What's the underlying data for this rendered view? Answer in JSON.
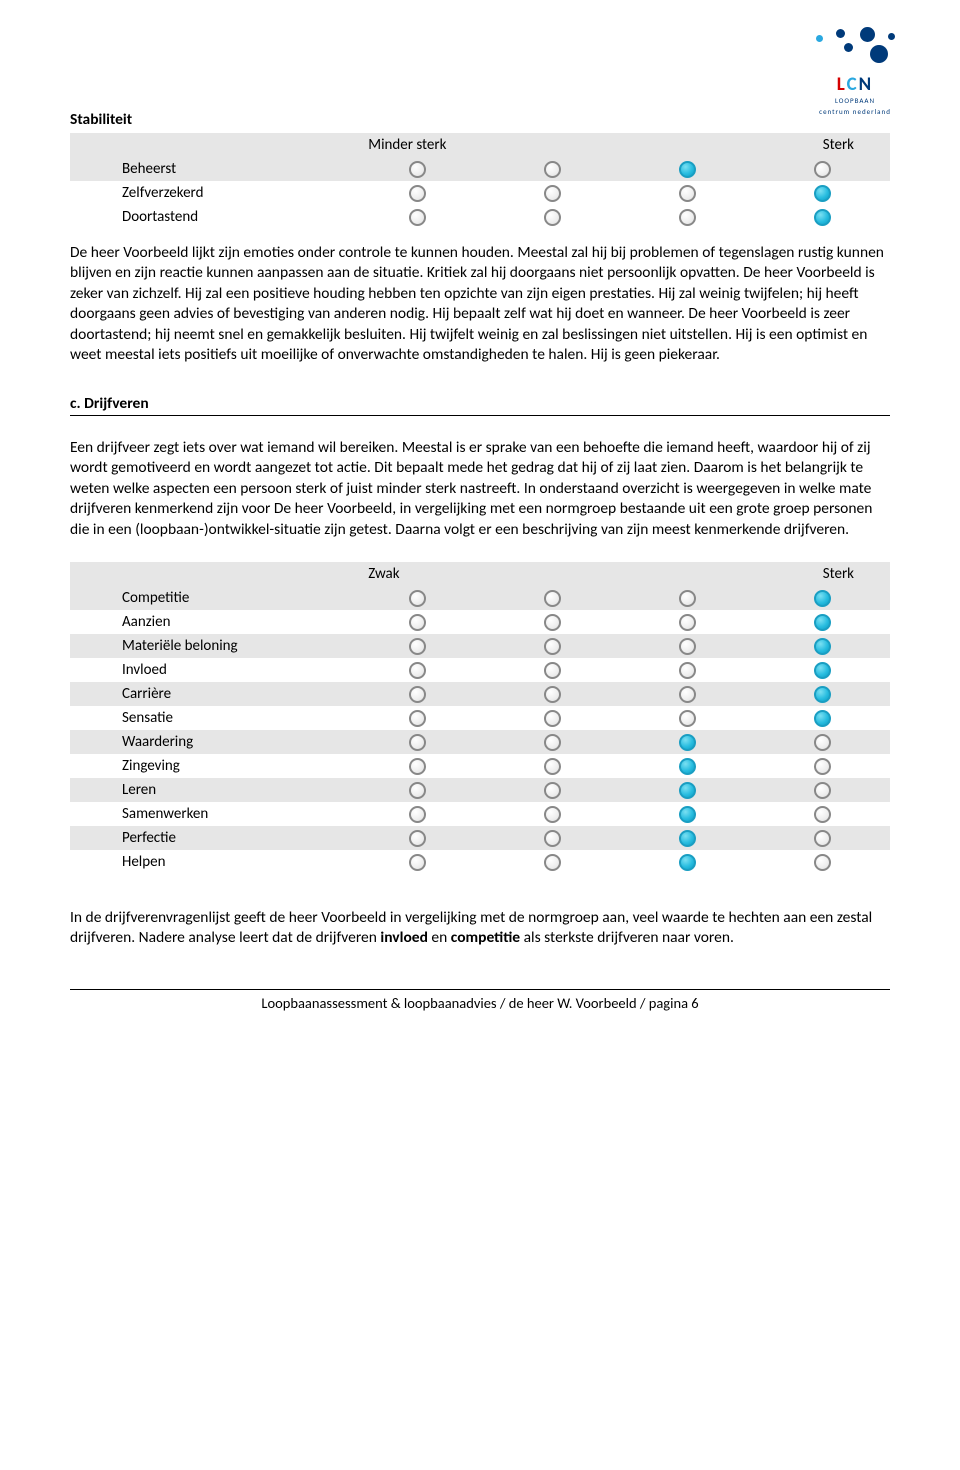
{
  "colors": {
    "row_shade": "#e6e6e6",
    "circle_empty_border": "#888888",
    "circle_fill": "#29bde0",
    "logo_blue": "#003a7a",
    "logo_red": "#d50000",
    "logo_lightblue": "#2aa8e0"
  },
  "logo": {
    "main": "LCN",
    "sub1": "LOOPBAAN",
    "sub2": "centrum nederland"
  },
  "section1": {
    "title": "Stabiliteit",
    "scale_left": "Minder sterk",
    "scale_right": "Sterk",
    "rows": [
      {
        "label": "Beheerst",
        "value": 3,
        "shaded": true
      },
      {
        "label": "Zelfverzekerd",
        "value": 4,
        "shaded": false
      },
      {
        "label": "Doortastend",
        "value": 4,
        "shaded": false
      }
    ]
  },
  "para1": "De heer Voorbeeld lijkt zijn emoties onder controle te kunnen houden. Meestal zal hij bij problemen of tegenslagen rustig kunnen blijven en zijn reactie kunnen aanpassen aan de situatie. Kritiek zal hij doorgaans niet persoonlijk opvatten. De heer Voorbeeld is zeker van zichzelf. Hij zal een positieve houding hebben ten opzichte van zijn eigen prestaties. Hij zal weinig twijfelen; hij heeft doorgaans geen advies of bevestiging van anderen nodig. Hij bepaalt zelf wat hij doet en wanneer. De heer Voorbeeld is zeer doortastend; hij neemt snel en gemakkelijk besluiten. Hij twijfelt weinig en zal beslissingen niet uitstellen. Hij is een optimist en weet meestal iets positiefs uit moeilijke of onverwachte omstandigheden te halen. Hij is geen piekeraar.",
  "section2": {
    "head": "c.  Drijfveren",
    "intro": "Een drijfveer zegt iets over wat iemand wil bereiken. Meestal is er sprake van een behoefte die iemand heeft, waardoor hij of zij wordt gemotiveerd en wordt aangezet tot actie. Dit bepaalt mede het gedrag dat hij of zij laat zien. Daarom is het belangrijk te weten welke aspecten een persoon sterk of juist minder sterk nastreeft. In onderstaand overzicht is weergegeven in welke mate drijfveren kenmerkend zijn voor De heer Voorbeeld, in vergelijking met een normgroep bestaande uit een grote groep personen die in een (loopbaan-)ontwikkel-situatie zijn getest. Daarna volgt er een beschrijving van zijn meest kenmerkende drijfveren.",
    "scale_left": "Zwak",
    "scale_right": "Sterk",
    "rows": [
      {
        "label": "Competitie",
        "value": 4,
        "shaded": true
      },
      {
        "label": "Aanzien",
        "value": 4,
        "shaded": false
      },
      {
        "label": "Materiële beloning",
        "value": 4,
        "shaded": true
      },
      {
        "label": "Invloed",
        "value": 4,
        "shaded": false
      },
      {
        "label": "Carrière",
        "value": 4,
        "shaded": true
      },
      {
        "label": "Sensatie",
        "value": 4,
        "shaded": false
      },
      {
        "label": "Waardering",
        "value": 3,
        "shaded": true
      },
      {
        "label": "Zingeving",
        "value": 3,
        "shaded": false
      },
      {
        "label": "Leren",
        "value": 3,
        "shaded": true
      },
      {
        "label": "Samenwerken",
        "value": 3,
        "shaded": false
      },
      {
        "label": "Perfectie",
        "value": 3,
        "shaded": true
      },
      {
        "label": "Helpen",
        "value": 3,
        "shaded": false
      }
    ]
  },
  "para2_pre": "In de drijfverenvragenlijst geeft de heer Voorbeeld in vergelijking met de normgroep aan, veel waarde te hechten aan een zestal drijfveren. Nadere analyse leert dat de drijfveren ",
  "para2_b1": "invloed",
  "para2_mid": " en ",
  "para2_b2": "competitie",
  "para2_post": " als sterkste drijfveren naar voren.",
  "footer": "Loopbaanassessment & loopbaanadvies / de heer W. Voorbeeld / pagina 6"
}
